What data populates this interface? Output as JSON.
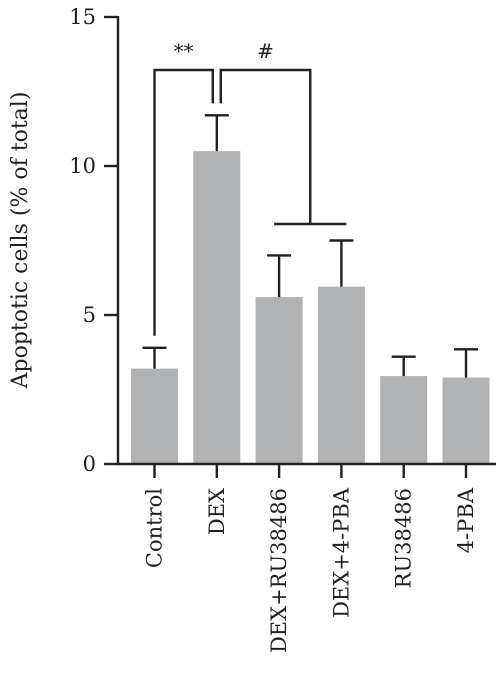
{
  "chart_data": {
    "type": "bar",
    "title": "",
    "xlabel": "",
    "ylabel": "Apoptotic cells (% of total)",
    "ylim": [
      0,
      15
    ],
    "yticks": [
      0,
      5,
      10,
      15
    ],
    "categories": [
      "Control",
      "DEX",
      "DEX+RU38486",
      "DEX+4-PBA",
      "RU38486",
      "4-PBA"
    ],
    "values": [
      3.2,
      10.5,
      5.6,
      5.95,
      2.95,
      2.9
    ],
    "error_upper": [
      0.7,
      1.2,
      1.4,
      1.55,
      0.65,
      0.95
    ],
    "bar_color": "#b1b2b4",
    "axis_color": "#231f20",
    "grid": false,
    "annotations": [
      {
        "label": "**",
        "type": "bracket",
        "from": "Control",
        "to": "DEX"
      },
      {
        "label": "#",
        "type": "bracket",
        "from": "DEX",
        "to": [
          "DEX+RU38486",
          "DEX+4-PBA"
        ]
      }
    ]
  }
}
